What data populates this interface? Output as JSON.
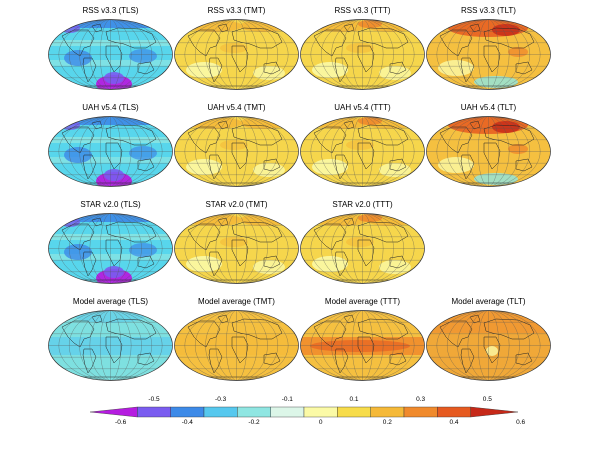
{
  "panels": [
    {
      "title": "RSS v3.3 (TLS)",
      "base": "#58d6ec",
      "pattern": "tls"
    },
    {
      "title": "RSS v3.3 (TMT)",
      "base": "#f6d64c",
      "pattern": "tmt"
    },
    {
      "title": "RSS v3.3 (TTT)",
      "base": "#f6d64c",
      "pattern": "ttt"
    },
    {
      "title": "RSS v3.3 (TLT)",
      "base": "#f5c040",
      "pattern": "tlt"
    },
    {
      "title": "UAH v5.4 (TLS)",
      "base": "#58d6ec",
      "pattern": "tls"
    },
    {
      "title": "UAH v5.4 (TMT)",
      "base": "#f6d64c",
      "pattern": "tmt"
    },
    {
      "title": "UAH v5.4 (TTT)",
      "base": "#f6d64c",
      "pattern": "ttt"
    },
    {
      "title": "UAH v5.4 (TLT)",
      "base": "#f5c040",
      "pattern": "tlt"
    },
    {
      "title": "STAR v2.0 (TLS)",
      "base": "#58d6ec",
      "pattern": "tls"
    },
    {
      "title": "STAR v2.0 (TMT)",
      "base": "#f6d64c",
      "pattern": "tmt"
    },
    {
      "title": "STAR v2.0 (TTT)",
      "base": "#f6d64c",
      "pattern": "ttt"
    },
    {
      "title": "Model average (TLS)",
      "base": "#7ee0e0",
      "pattern": "model-tls"
    },
    {
      "title": "Model average (TMT)",
      "base": "#f5c040",
      "pattern": "model-tmt"
    },
    {
      "title": "Model average (TTT)",
      "base": "#f5c040",
      "pattern": "model-ttt"
    },
    {
      "title": "Model average (TLT)",
      "base": "#f0a838",
      "pattern": "model-tlt"
    }
  ],
  "colorbar": {
    "colors": [
      "#b51ce0",
      "#7a5cf0",
      "#3d8ae8",
      "#56c8ee",
      "#8fe6e2",
      "#dcf6e8",
      "#fbfaa6",
      "#f7dc4a",
      "#f5b938",
      "#f08a2c",
      "#e65a20",
      "#c62818"
    ],
    "ticks_top": [
      "-0.5",
      "-0.3",
      "-0.1",
      "0.1",
      "0.3",
      "0.5"
    ],
    "ticks_bottom": [
      "-0.6",
      "-0.4",
      "-0.2",
      "0",
      "0.2",
      "0.4",
      "0.6"
    ]
  }
}
